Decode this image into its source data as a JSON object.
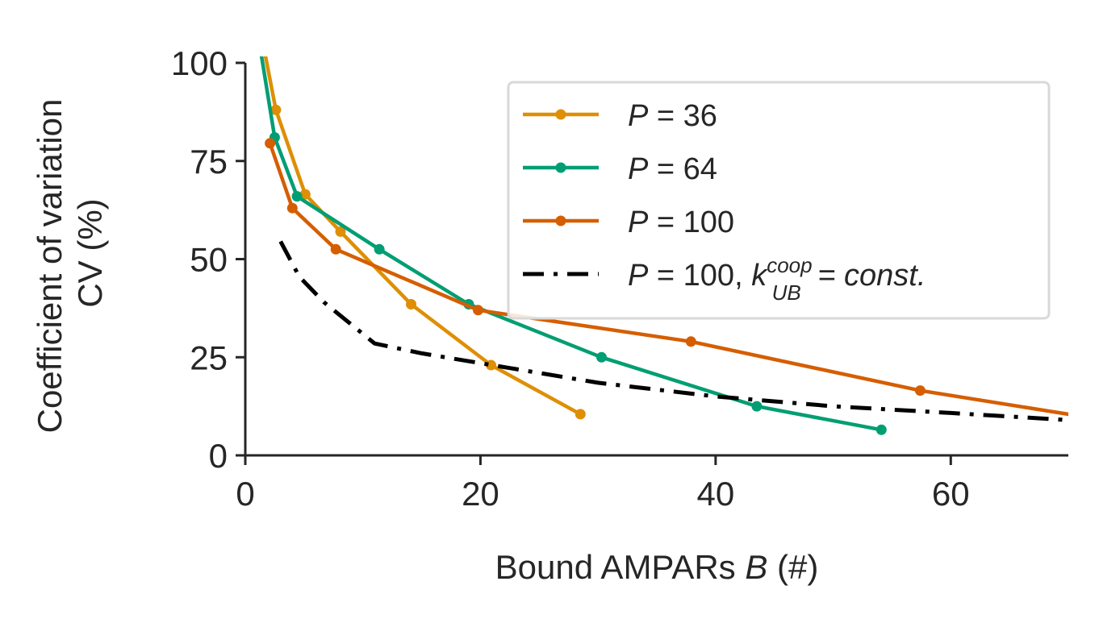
{
  "chart_data": {
    "type": "line",
    "xlabel": "Bound AMPARs",
    "xlabel_var": "B",
    "xlabel_unit": "(#)",
    "ylabel_line1": "Coefficient of variation",
    "ylabel_line2": "CV (%)",
    "xlim": [
      0,
      70
    ],
    "ylim": [
      0,
      100
    ],
    "xticks": [
      0,
      20,
      40,
      60
    ],
    "yticks": [
      0,
      25,
      50,
      75,
      100
    ],
    "grid": false,
    "legend_position": "top-right",
    "series": [
      {
        "name": "P = 36",
        "color": "#de8f05",
        "style": "solid",
        "markers": true,
        "points": [
          [
            1.5,
            105
          ],
          [
            2.6,
            88
          ],
          [
            5.1,
            66.5
          ],
          [
            8.1,
            57
          ],
          [
            14.1,
            38.5
          ],
          [
            20.9,
            23
          ],
          [
            28.5,
            10.5
          ]
        ]
      },
      {
        "name": "P = 64",
        "color": "#029e73",
        "style": "solid",
        "markers": true,
        "points": [
          [
            1.2,
            105
          ],
          [
            2.5,
            81
          ],
          [
            4.4,
            66
          ],
          [
            11.4,
            52.5
          ],
          [
            19.0,
            38.5
          ],
          [
            30.3,
            25
          ],
          [
            43.5,
            12.5
          ],
          [
            54.1,
            6.5
          ]
        ]
      },
      {
        "name": "P = 100",
        "color": "#d55e00",
        "style": "solid",
        "markers": true,
        "points": [
          [
            2.1,
            79.5
          ],
          [
            4.0,
            63
          ],
          [
            7.7,
            52.5
          ],
          [
            19.8,
            37
          ],
          [
            37.9,
            29
          ],
          [
            57.4,
            16.5
          ],
          [
            71.0,
            10
          ]
        ]
      },
      {
        "name": "P = 100, k_UB^coop = const.",
        "color": "#000000",
        "style": "dashdot",
        "markers": false,
        "points": [
          [
            3.0,
            54.5
          ],
          [
            4.6,
            45.5
          ],
          [
            6.7,
            39
          ],
          [
            11.0,
            28.5
          ],
          [
            15.0,
            26
          ],
          [
            20.0,
            23.5
          ],
          [
            30.0,
            18.5
          ],
          [
            40.0,
            15
          ],
          [
            50.0,
            12.5
          ],
          [
            60.0,
            10.8
          ],
          [
            70.0,
            9
          ]
        ]
      }
    ],
    "legend": [
      {
        "v": "P",
        "eq": " = 36",
        "sub": "",
        "sup": "",
        "tail": ""
      },
      {
        "v": "P",
        "eq": " = 64",
        "sub": "",
        "sup": "",
        "tail": ""
      },
      {
        "v": "P",
        "eq": " = 100",
        "sub": "",
        "sup": "",
        "tail": ""
      },
      {
        "v": "P",
        "eq": " = 100, ",
        "k": "k",
        "sub": "UB",
        "sup": "coop",
        "tail": " = const."
      }
    ]
  }
}
